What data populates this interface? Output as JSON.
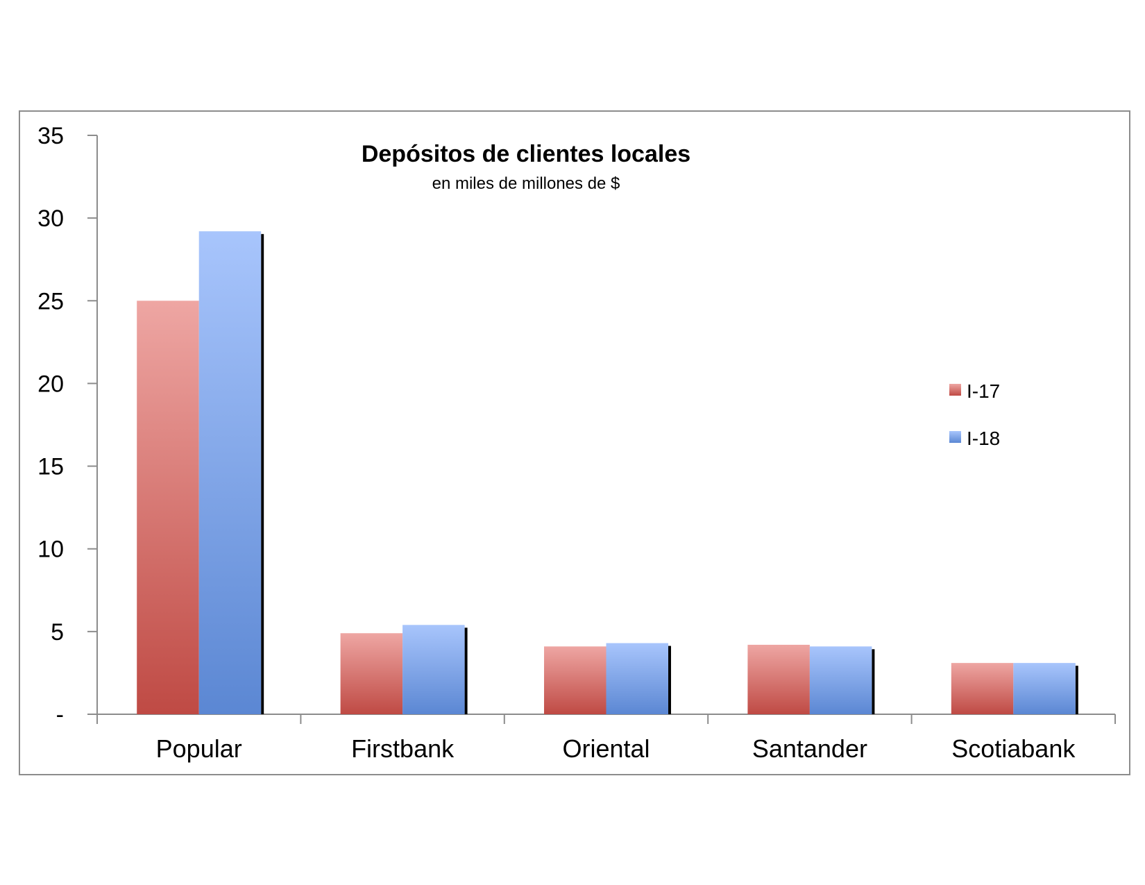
{
  "chart_data": {
    "type": "bar",
    "title": "Depósitos de clientes locales",
    "subtitle": "en miles de millones de $",
    "xlabel": "",
    "ylabel": "",
    "categories": [
      "Popular",
      "Firstbank",
      "Oriental",
      "Santander",
      "Scotiabank"
    ],
    "series": [
      {
        "name": "I-17",
        "values": [
          25.0,
          4.9,
          4.1,
          4.2,
          3.1
        ],
        "color": "#c0504d"
      },
      {
        "name": "I-18",
        "values": [
          29.2,
          5.4,
          4.3,
          4.1,
          3.1
        ],
        "color": "#6a8fd6"
      }
    ],
    "ylim": [
      0,
      35
    ],
    "yticks": [
      0,
      5,
      10,
      15,
      20,
      25,
      30,
      35
    ],
    "ytick_labels": [
      "-",
      "5",
      "10",
      "15",
      "20",
      "25",
      "30",
      "35"
    ],
    "grid": false,
    "legend": "right"
  }
}
